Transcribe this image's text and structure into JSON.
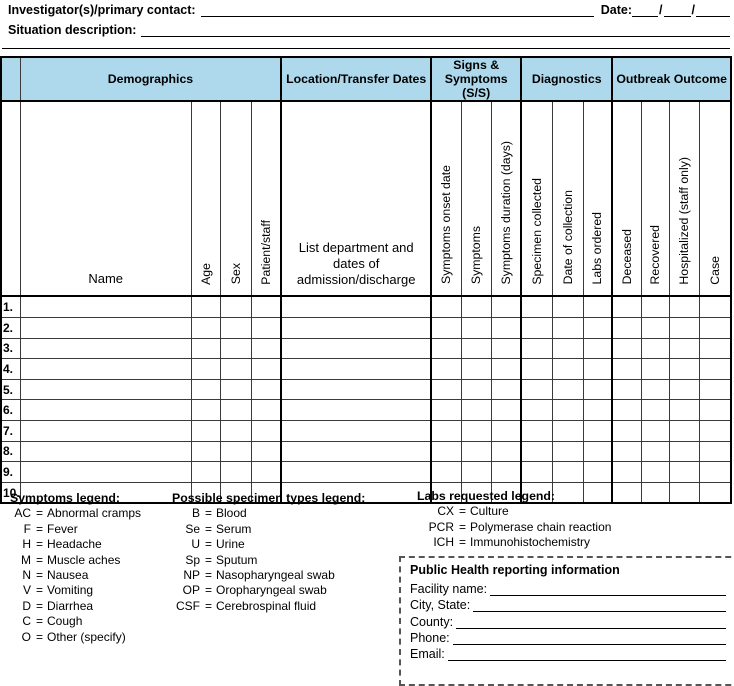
{
  "form": {
    "investigator_label": "Investigator(s)/primary contact:",
    "date_label": "Date:",
    "date_separator": "/",
    "situation_label": "Situation description:"
  },
  "table": {
    "groups": {
      "demographics": "Demographics",
      "location": "Location/Transfer Dates",
      "signs": "Signs & Symptoms (S/S)",
      "diagnostics": "Diagnostics",
      "outcome": "Outbreak Outcome"
    },
    "columns": {
      "name": "Name",
      "age": "Age",
      "sex": "Sex",
      "patient_staff": "Patient/staff",
      "department": "List department and dates of admission/discharge",
      "onset": "Symptoms onset date",
      "symptoms": "Symptoms",
      "duration": "Symptoms duration (days)",
      "specimen": "Specimen collected",
      "collection_date": "Date of collection",
      "labs": "Labs ordered",
      "deceased": "Deceased",
      "recovered": "Recovered",
      "hospitalized": "Hospitalized (staff only)",
      "case": "Case"
    },
    "row_numbers": [
      "1.",
      "2.",
      "3.",
      "4.",
      "5.",
      "6.",
      "7.",
      "8.",
      "9.",
      "10."
    ]
  },
  "legends": {
    "equals_sign": "=",
    "symptoms": {
      "title": "Symptoms legend:",
      "items": [
        {
          "code": "AC",
          "desc": "Abnormal cramps"
        },
        {
          "code": "F",
          "desc": "Fever"
        },
        {
          "code": "H",
          "desc": "Headache"
        },
        {
          "code": "M",
          "desc": "Muscle aches"
        },
        {
          "code": "N",
          "desc": "Nausea"
        },
        {
          "code": "V",
          "desc": "Vomiting"
        },
        {
          "code": "D",
          "desc": "Diarrhea"
        },
        {
          "code": "C",
          "desc": "Cough"
        },
        {
          "code": "O",
          "desc": "Other (specify)"
        }
      ]
    },
    "specimens": {
      "title": "Possible specimen types legend:",
      "items": [
        {
          "code": "B",
          "desc": "Blood"
        },
        {
          "code": "Se",
          "desc": "Serum"
        },
        {
          "code": "U",
          "desc": "Urine"
        },
        {
          "code": "Sp",
          "desc": "Sputum"
        },
        {
          "code": "NP",
          "desc": "Nasopharyngeal swab"
        },
        {
          "code": "OP",
          "desc": "Oropharyngeal swab"
        },
        {
          "code": "CSF",
          "desc": "Cerebrospinal fluid"
        }
      ]
    },
    "labs": {
      "title": "Labs requested legend:",
      "items": [
        {
          "code": "CX",
          "desc": "Culture"
        },
        {
          "code": "PCR",
          "desc": "Polymerase chain reaction"
        },
        {
          "code": "ICH",
          "desc": "Immunohistochemistry"
        }
      ]
    }
  },
  "reporting": {
    "title": "Public Health reporting information",
    "fields": [
      "Facility name:",
      "City, State:",
      "County:",
      "Phone:",
      "Email:"
    ]
  },
  "colors": {
    "header_fill": "#aed9ec",
    "border": "#000000"
  }
}
